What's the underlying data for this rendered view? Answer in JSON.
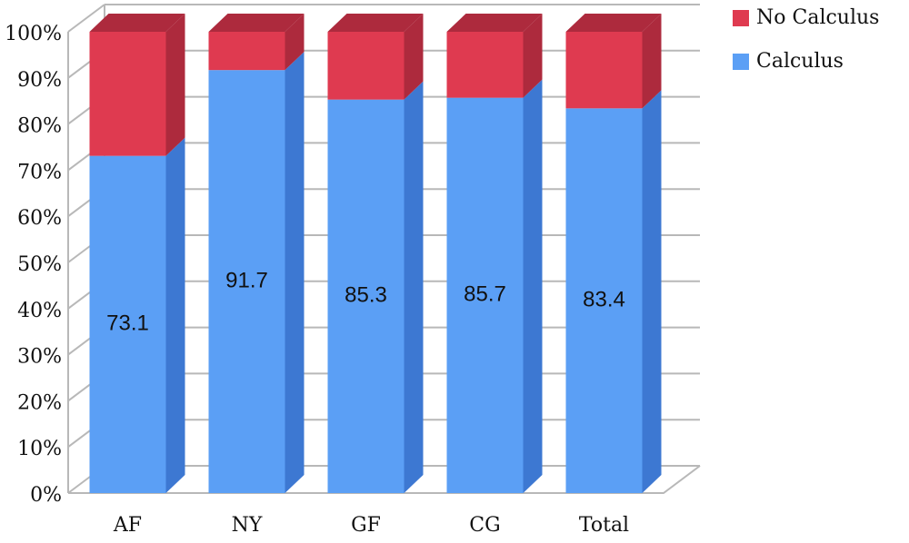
{
  "chart_data": {
    "type": "stacked_bar_3d",
    "categories": [
      "AF",
      "NY",
      "GF",
      "CG",
      "Total"
    ],
    "series": [
      {
        "name": "Calculus",
        "color": "#5b9ff5",
        "side_color": "#3d78d2",
        "values": [
          73.1,
          91.7,
          85.3,
          85.7,
          83.4
        ],
        "show_labels": true
      },
      {
        "name": "No Calculus",
        "color": "#df3a50",
        "side_color": "#ad2a3d",
        "values": [
          26.9,
          8.3,
          14.7,
          14.3,
          16.6
        ],
        "show_labels": false
      }
    ],
    "ylim": [
      0,
      100
    ],
    "yticks": [
      {
        "value": 0,
        "label": "0%"
      },
      {
        "value": 10,
        "label": "10%"
      },
      {
        "value": 20,
        "label": "20%"
      },
      {
        "value": 30,
        "label": "30%"
      },
      {
        "value": 40,
        "label": "40%"
      },
      {
        "value": 50,
        "label": "50%"
      },
      {
        "value": 60,
        "label": "60%"
      },
      {
        "value": 70,
        "label": "70%"
      },
      {
        "value": 80,
        "label": "80%"
      },
      {
        "value": 90,
        "label": "90%"
      },
      {
        "value": 100,
        "label": "100%"
      }
    ],
    "grid": true,
    "legend": "top-right"
  }
}
